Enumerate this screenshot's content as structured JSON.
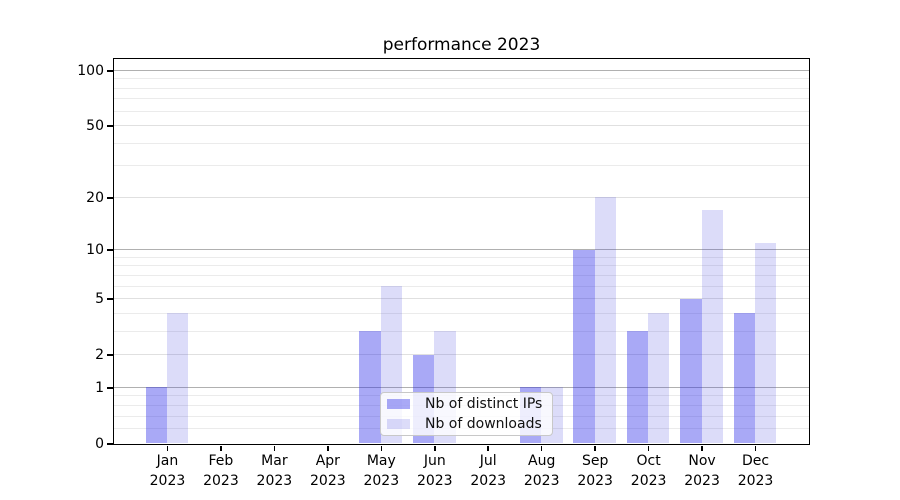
{
  "chart_data": {
    "type": "bar",
    "title": "performance 2023",
    "categories": [
      "Jan 2023",
      "Feb 2023",
      "Mar 2023",
      "Apr 2023",
      "May 2023",
      "Jun 2023",
      "Jul 2023",
      "Aug 2023",
      "Sep 2023",
      "Oct 2023",
      "Nov 2023",
      "Dec 2023"
    ],
    "series": [
      {
        "name": "Nb of distinct IPs",
        "color": "#2828e8",
        "alpha": 0.4,
        "values": [
          1,
          0,
          0,
          0,
          3,
          2,
          0,
          1,
          10,
          3,
          5,
          4
        ]
      },
      {
        "name": "Nb of downloads",
        "color": "#3c3cde",
        "alpha": 0.18,
        "values": [
          4,
          0,
          0,
          0,
          6,
          3,
          0,
          1,
          20,
          4,
          17,
          11
        ]
      }
    ],
    "yscale": "log1p",
    "ylim": [
      0,
      116
    ],
    "yticks": [
      0,
      1,
      2,
      5,
      10,
      20,
      50,
      100
    ],
    "major_grid_values": [
      1,
      10,
      100
    ],
    "minor_yticks": [
      0.2,
      0.4,
      0.6,
      0.8,
      3,
      4,
      6,
      7,
      8,
      9,
      30,
      40,
      60,
      70,
      80,
      90
    ],
    "legend_position": "lower center",
    "grid": true,
    "colors": {
      "major_grid": "#b0b0b0",
      "labeled_grid": "#e0e0e0",
      "minor_grid": "#ebebeb",
      "spine": "#000000",
      "text": "#000000"
    }
  }
}
